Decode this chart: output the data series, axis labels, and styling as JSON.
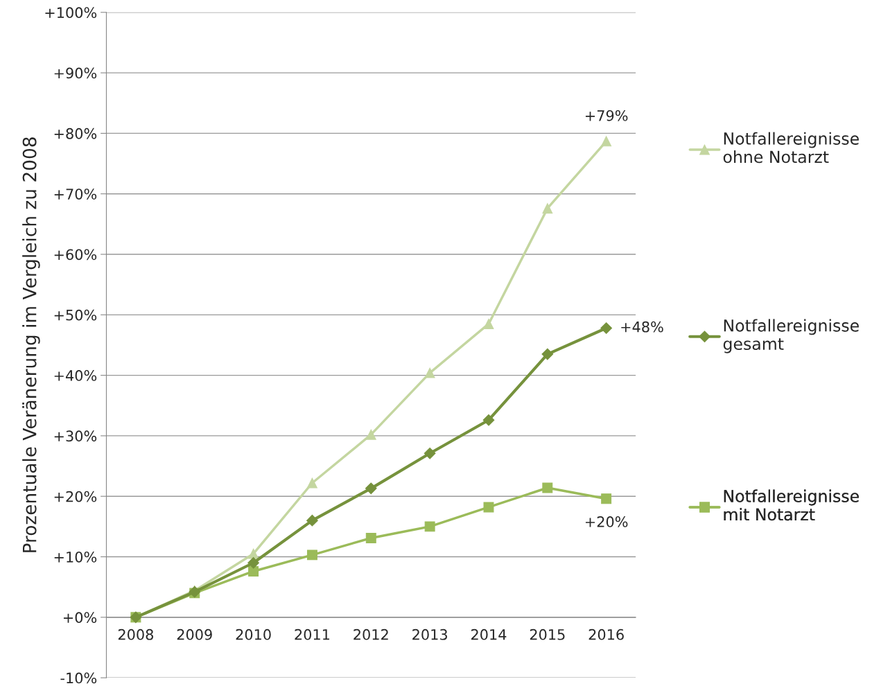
{
  "chart_data": {
    "type": "line",
    "ylabel": "Prozentuale Veränerung im Vergleich zu 2008",
    "categories": [
      "2008",
      "2009",
      "2010",
      "2011",
      "2012",
      "2013",
      "2014",
      "2015",
      "2016"
    ],
    "series": [
      {
        "name": "Notfallereignisse\nohne Notarzt",
        "color": "#c4d6a0",
        "marker": "triangle",
        "values": [
          0,
          4.4,
          10.5,
          22.2,
          30.2,
          40.4,
          48.5,
          67.6,
          78.7
        ]
      },
      {
        "name": "Notfallereignisse\ngesamt",
        "color": "#76923c",
        "marker": "diamond",
        "values": [
          0,
          4.2,
          9.0,
          16.0,
          21.3,
          27.1,
          32.6,
          43.5,
          47.8
        ]
      },
      {
        "name": "Notfallereignisse\nmit Notarzt",
        "color": "#9bbb59",
        "marker": "square",
        "values": [
          0,
          4.0,
          7.6,
          10.3,
          13.1,
          15.0,
          18.2,
          21.4,
          19.6
        ]
      }
    ],
    "ylim": [
      -10,
      100
    ],
    "yticks": [
      {
        "value": -10,
        "label": "-10%"
      },
      {
        "value": 0,
        "label": "+0%"
      },
      {
        "value": 10,
        "label": "+10%"
      },
      {
        "value": 20,
        "label": "+20%"
      },
      {
        "value": 30,
        "label": "+30%"
      },
      {
        "value": 40,
        "label": "+40%"
      },
      {
        "value": 50,
        "label": "+50%"
      },
      {
        "value": 60,
        "label": "+60%"
      },
      {
        "value": 70,
        "label": "+70%"
      },
      {
        "value": 80,
        "label": "+80%"
      },
      {
        "value": 90,
        "label": "+90%"
      },
      {
        "value": 100,
        "label": "+100%"
      }
    ],
    "annotations": [
      {
        "text": "+79%",
        "x": "2016",
        "y": 78.7
      },
      {
        "text": "+48%",
        "x": "2016",
        "y": 47.8
      },
      {
        "text": "+20%",
        "x": "2016",
        "y": 19.6
      }
    ],
    "grid": "y",
    "legend": "right",
    "line_style": "solid"
  }
}
